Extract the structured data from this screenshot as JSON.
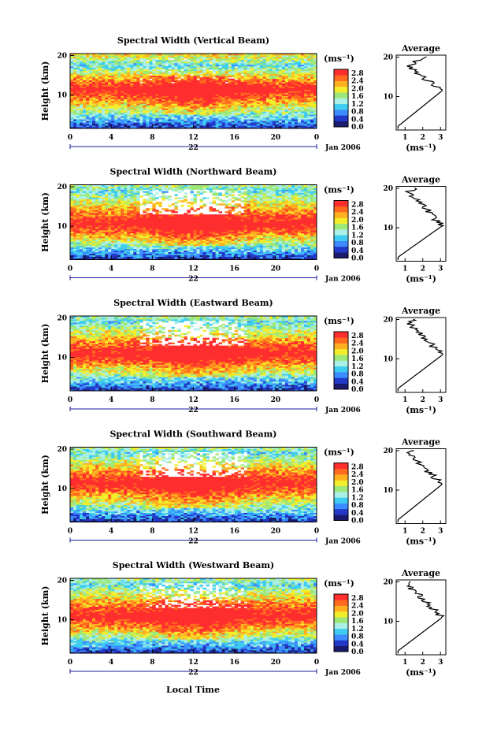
{
  "chart_data": {
    "type": "heatmap",
    "panels": [
      {
        "title": "Spectral Width (Vertical Beam)",
        "avg_peak_height": 11.5,
        "avg_top_low_height": 17.5,
        "white_gaps": "low"
      },
      {
        "title": "Spectral Width (Northward Beam)",
        "avg_peak_height": 10.5,
        "avg_top_low_height": 19.0,
        "white_gaps": "high"
      },
      {
        "title": "Spectral Width (Eastward Beam)",
        "avg_peak_height": 11.0,
        "avg_top_low_height": 19.0,
        "white_gaps": "high"
      },
      {
        "title": "Spectral Width (Southward Beam)",
        "avg_peak_height": 11.5,
        "avg_top_low_height": 19.0,
        "white_gaps": "high"
      },
      {
        "title": "Spectral Width (Westward Beam)",
        "avg_peak_height": 11.0,
        "avg_top_low_height": 19.0,
        "white_gaps": "medium"
      }
    ],
    "xlabel": "Local Time",
    "ylabel": "Height (km)",
    "x_ticks": [
      "0",
      "4",
      "8",
      "12",
      "16",
      "20",
      "0"
    ],
    "xlim": [
      0,
      24
    ],
    "y_ticks": [
      "20",
      "10"
    ],
    "ylim": [
      1.5,
      20.5
    ],
    "date_label": "22",
    "month_label": "Jan 2006",
    "colorbar": {
      "unit": "(ms⁻¹)",
      "ticks": [
        "2.8",
        "2.4",
        "2.0",
        "1.6",
        "1.2",
        "0.8",
        "0.4",
        "0.0"
      ],
      "range": [
        0.0,
        3.0
      ]
    },
    "average": {
      "title": "Average",
      "xlabel": "(ms⁻¹)",
      "x_ticks_first": [
        "1",
        "2",
        "3"
      ],
      "x_ticks_rest": [
        "1",
        "2",
        "3"
      ],
      "y_ticks": [
        "20",
        "10"
      ]
    }
  },
  "colors": {
    "scale": [
      "#1a1a6e",
      "#2238c8",
      "#3c8cff",
      "#3ecdf0",
      "#aaf0e6",
      "#9ee87a",
      "#f2ee2c",
      "#ffb020",
      "#ff6a1e",
      "#ff2e2e"
    ],
    "axis": "#000000",
    "time_axis": "#1c1c9c"
  }
}
